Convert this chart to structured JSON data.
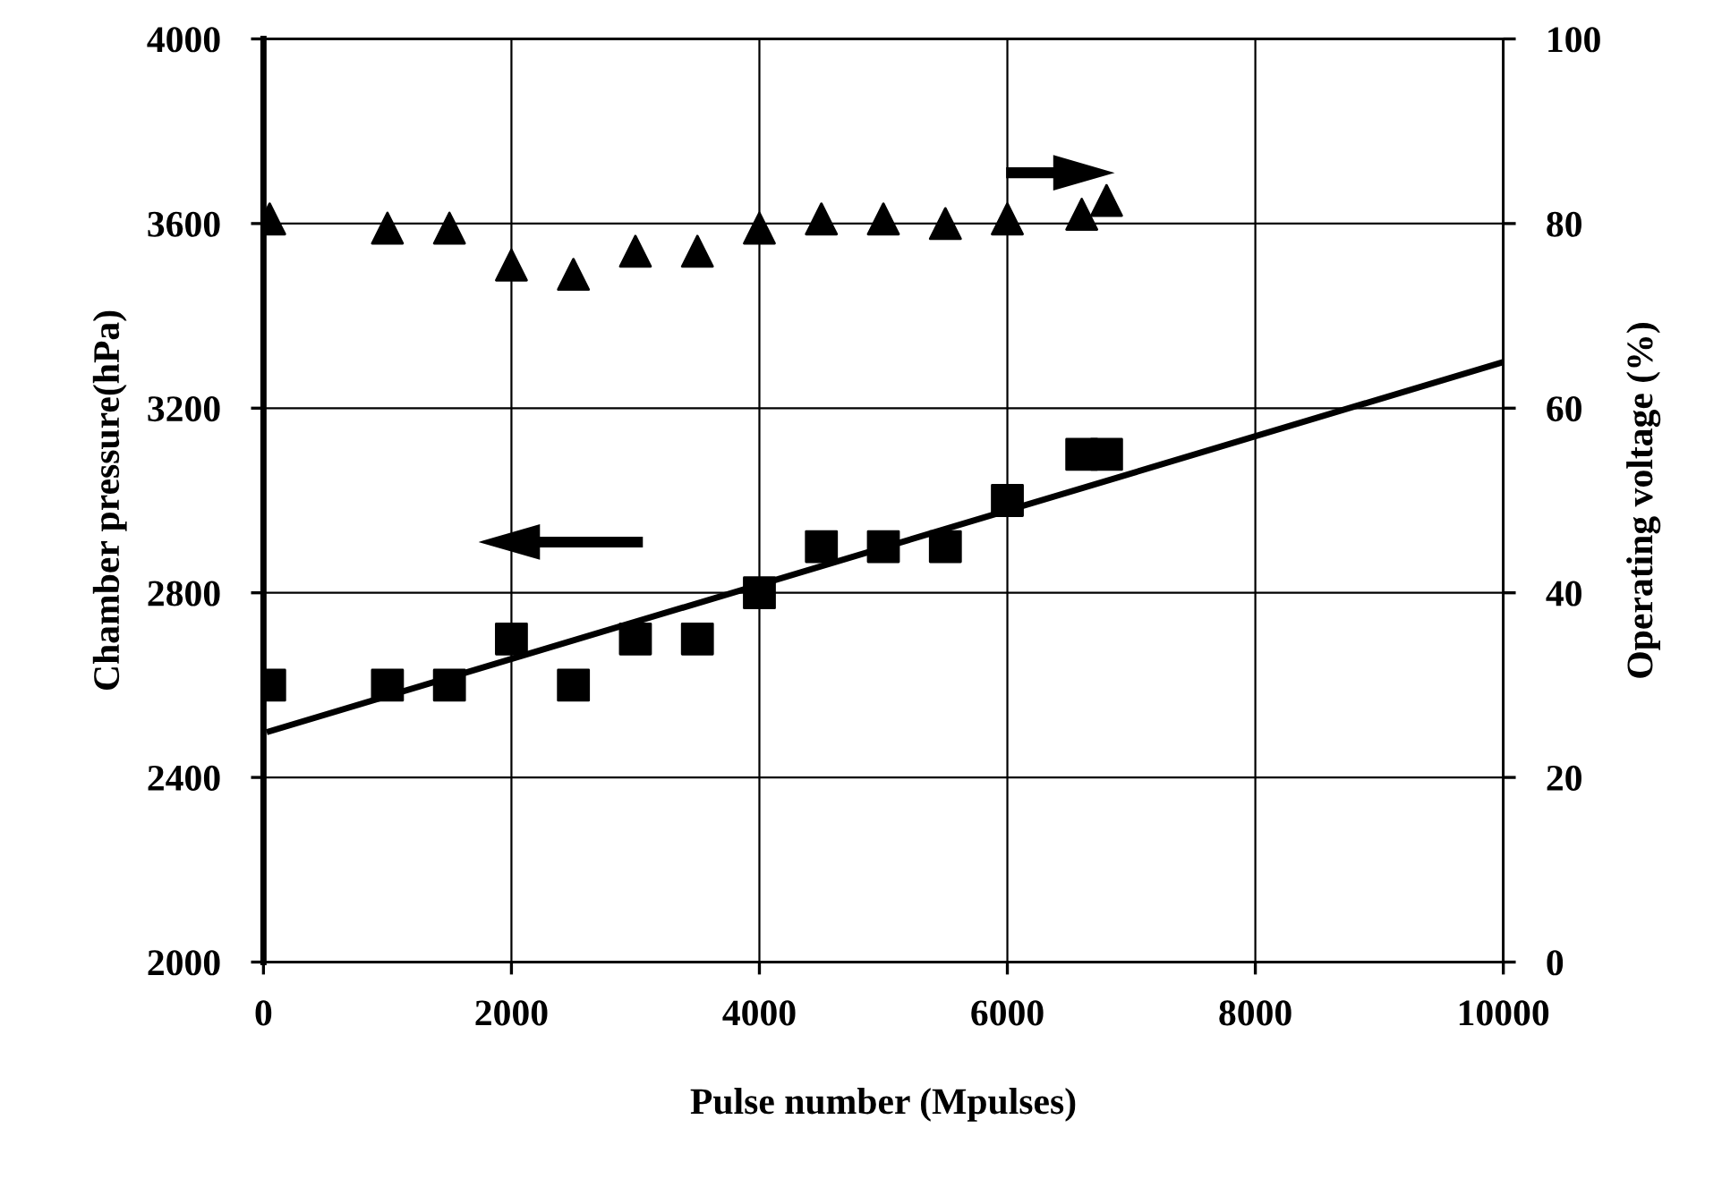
{
  "chart_data": {
    "type": "scatter",
    "xlabel": "Pulse number (Mpulses)",
    "ylabel": "Chamber pressure(hPa)",
    "y2label": "Operating voltage (%)",
    "xlim": [
      0,
      10000
    ],
    "xticks": [
      0,
      2000,
      4000,
      6000,
      8000,
      10000
    ],
    "ylim": [
      2000,
      4000
    ],
    "yticks": [
      2000,
      2400,
      2800,
      3200,
      3600,
      4000
    ],
    "y2lim": [
      0,
      100
    ],
    "y2ticks": [
      0,
      20,
      40,
      60,
      80,
      100
    ],
    "grid": true,
    "series": [
      {
        "marker": "square",
        "color": "#000000",
        "x": [
          50,
          1000,
          1500,
          2000,
          2500,
          3000,
          3500,
          4000,
          4500,
          5000,
          5500,
          6000,
          6600,
          6800
        ],
        "values": [
          2600,
          2600,
          2600,
          2700,
          2600,
          2700,
          2700,
          2800,
          2900,
          2900,
          2900,
          3000,
          3100,
          3100
        ]
      },
      {
        "type": "line",
        "marker": "none",
        "color": "#000000",
        "x": [
          50,
          10000
        ],
        "values": [
          2500,
          3300
        ]
      },
      {
        "marker": "triangle",
        "color": "#000000",
        "axis": "y2",
        "x": [
          50,
          1000,
          1500,
          2000,
          2500,
          3000,
          3500,
          4000,
          4500,
          5000,
          5500,
          6000,
          6600,
          6800
        ],
        "values": [
          80.5,
          79.5,
          79.5,
          75.5,
          74.5,
          77,
          77,
          79.5,
          80.5,
          80.5,
          80,
          80.5,
          81,
          82.5
        ]
      }
    ]
  }
}
